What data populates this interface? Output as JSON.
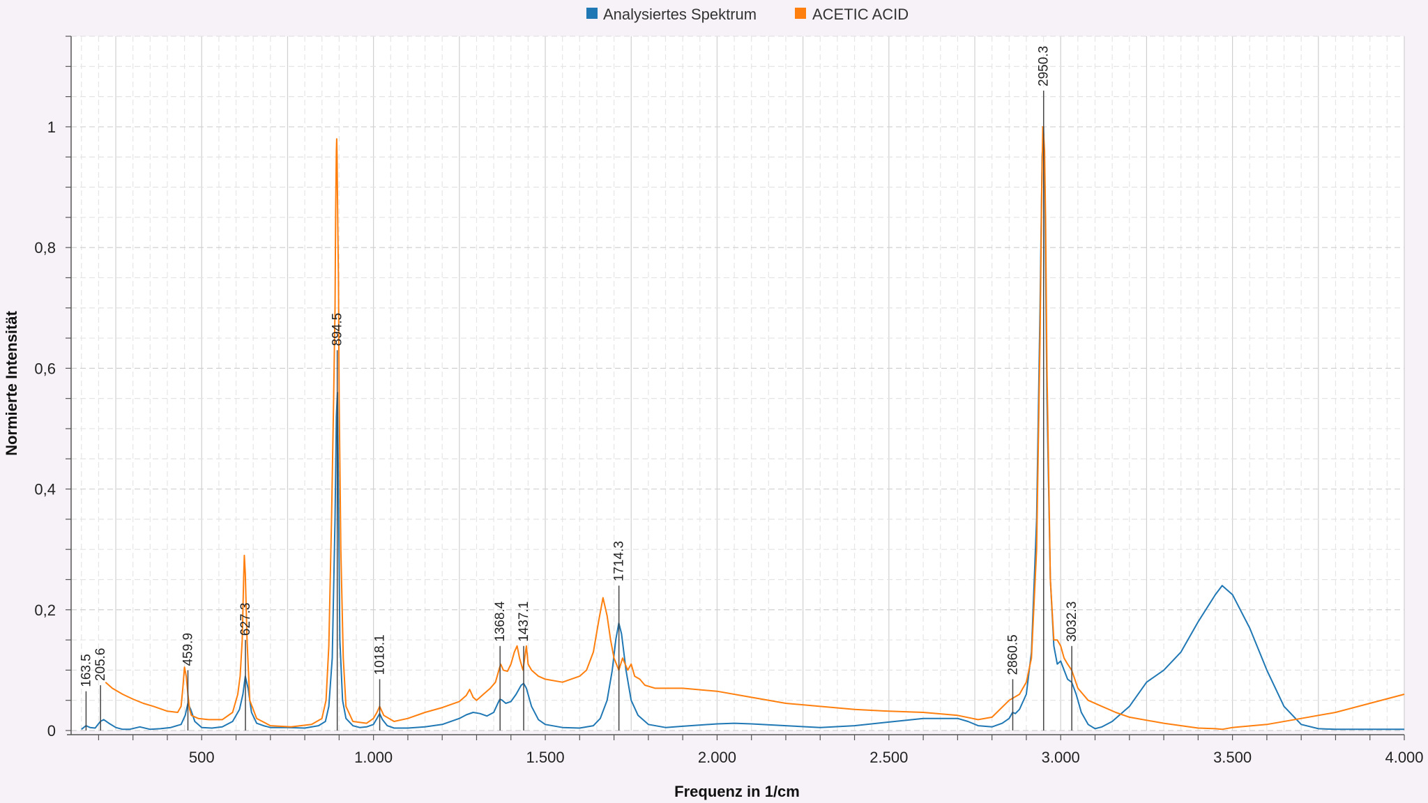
{
  "chart_data": {
    "type": "line",
    "title": "",
    "xlabel": "Frequenz in 1/cm",
    "ylabel": "Normierte Intensität",
    "xlim": [
      120,
      4000
    ],
    "ylim": [
      0,
      1.15
    ],
    "grid": true,
    "legend_position": "top-center",
    "x_ticks": [
      {
        "value": 500,
        "label": "500"
      },
      {
        "value": 1000,
        "label": "1.000"
      },
      {
        "value": 1500,
        "label": "1.500"
      },
      {
        "value": 2000,
        "label": "2.000"
      },
      {
        "value": 2500,
        "label": "2.500"
      },
      {
        "value": 3000,
        "label": "3.000"
      },
      {
        "value": 3500,
        "label": "3.500"
      },
      {
        "value": 4000,
        "label": "4.000"
      }
    ],
    "y_ticks": [
      {
        "value": 0,
        "label": "0"
      },
      {
        "value": 0.2,
        "label": "0,2"
      },
      {
        "value": 0.4,
        "label": "0,4"
      },
      {
        "value": 0.6,
        "label": "0,6"
      },
      {
        "value": 0.8,
        "label": "0,8"
      },
      {
        "value": 1,
        "label": "1"
      }
    ],
    "series": [
      {
        "name": "Analysiertes Spektrum",
        "color": "#1f77b4",
        "x": [
          150,
          163,
          175,
          190,
          205,
          215,
          230,
          250,
          270,
          290,
          320,
          350,
          380,
          410,
          440,
          452,
          460,
          468,
          480,
          500,
          530,
          560,
          590,
          610,
          620,
          627,
          635,
          645,
          660,
          680,
          700,
          750,
          800,
          840,
          860,
          870,
          880,
          888,
          892,
          895,
          898,
          902,
          910,
          920,
          940,
          960,
          980,
          1000,
          1010,
          1018,
          1026,
          1040,
          1060,
          1100,
          1150,
          1200,
          1250,
          1270,
          1290,
          1310,
          1330,
          1350,
          1362,
          1368,
          1375,
          1385,
          1400,
          1415,
          1430,
          1437,
          1445,
          1460,
          1480,
          1500,
          1550,
          1600,
          1640,
          1660,
          1680,
          1695,
          1705,
          1714,
          1722,
          1735,
          1750,
          1770,
          1800,
          1850,
          1900,
          2000,
          2050,
          2100,
          2200,
          2300,
          2400,
          2500,
          2600,
          2650,
          2700,
          2730,
          2760,
          2800,
          2830,
          2850,
          2860,
          2868,
          2880,
          2900,
          2915,
          2930,
          2940,
          2946,
          2950,
          2954,
          2960,
          2970,
          2980,
          2990,
          3000,
          3010,
          3020,
          3032,
          3045,
          3060,
          3080,
          3100,
          3120,
          3150,
          3200,
          3250,
          3300,
          3350,
          3400,
          3450,
          3470,
          3500,
          3550,
          3600,
          3650,
          3700,
          3750,
          3800,
          3900,
          4000
        ],
        "y": [
          0.002,
          0.008,
          0.005,
          0.004,
          0.015,
          0.018,
          0.012,
          0.005,
          0.002,
          0.002,
          0.006,
          0.002,
          0.003,
          0.005,
          0.01,
          0.025,
          0.045,
          0.035,
          0.015,
          0.005,
          0.004,
          0.006,
          0.015,
          0.035,
          0.06,
          0.09,
          0.07,
          0.03,
          0.012,
          0.008,
          0.005,
          0.005,
          0.004,
          0.008,
          0.015,
          0.04,
          0.12,
          0.35,
          0.52,
          0.56,
          0.4,
          0.15,
          0.05,
          0.02,
          0.008,
          0.005,
          0.006,
          0.01,
          0.02,
          0.028,
          0.018,
          0.008,
          0.004,
          0.004,
          0.006,
          0.01,
          0.02,
          0.026,
          0.03,
          0.028,
          0.024,
          0.03,
          0.045,
          0.052,
          0.05,
          0.045,
          0.048,
          0.06,
          0.075,
          0.078,
          0.07,
          0.04,
          0.018,
          0.01,
          0.005,
          0.004,
          0.008,
          0.02,
          0.05,
          0.1,
          0.15,
          0.178,
          0.16,
          0.1,
          0.05,
          0.025,
          0.01,
          0.005,
          0.007,
          0.011,
          0.012,
          0.011,
          0.008,
          0.005,
          0.008,
          0.014,
          0.02,
          0.02,
          0.02,
          0.015,
          0.008,
          0.006,
          0.012,
          0.02,
          0.03,
          0.028,
          0.035,
          0.06,
          0.13,
          0.35,
          0.7,
          0.95,
          1.0,
          0.9,
          0.55,
          0.25,
          0.14,
          0.11,
          0.115,
          0.1,
          0.085,
          0.08,
          0.06,
          0.03,
          0.01,
          0.003,
          0.006,
          0.015,
          0.04,
          0.08,
          0.1,
          0.13,
          0.18,
          0.225,
          0.24,
          0.225,
          0.17,
          0.1,
          0.04,
          0.01,
          0.003,
          0.002,
          0.002,
          0.002
        ]
      },
      {
        "name": "ACETIC ACID",
        "color": "#ff7f0e",
        "x": [
          220,
          240,
          270,
          300,
          330,
          360,
          400,
          430,
          440,
          445,
          450,
          455,
          460,
          465,
          470,
          490,
          520,
          560,
          590,
          605,
          612,
          618,
          620,
          622,
          624,
          627,
          632,
          640,
          660,
          700,
          760,
          820,
          850,
          862,
          870,
          878,
          884,
          888,
          890,
          892,
          893,
          894,
          895,
          896,
          898,
          900,
          905,
          912,
          920,
          940,
          980,
          1000,
          1010,
          1018,
          1030,
          1060,
          1100,
          1150,
          1200,
          1250,
          1270,
          1280,
          1290,
          1300,
          1320,
          1340,
          1355,
          1365,
          1370,
          1378,
          1390,
          1400,
          1410,
          1418,
          1425,
          1435,
          1440,
          1445,
          1450,
          1460,
          1480,
          1500,
          1550,
          1600,
          1620,
          1640,
          1655,
          1668,
          1680,
          1690,
          1700,
          1714,
          1725,
          1740,
          1750,
          1760,
          1775,
          1790,
          1820,
          1900,
          2000,
          2100,
          2200,
          2300,
          2400,
          2500,
          2600,
          2700,
          2760,
          2800,
          2850,
          2880,
          2900,
          2915,
          2930,
          2940,
          2945,
          2948,
          2950,
          2953,
          2956,
          2960,
          2970,
          2980,
          2990,
          3000,
          3010,
          3020,
          3032,
          3050,
          3080,
          3120,
          3160,
          3200,
          3300,
          3400,
          3450,
          3470,
          3500,
          3600,
          3700,
          3800,
          3900,
          4000
        ],
        "y": [
          0.08,
          0.07,
          0.06,
          0.052,
          0.045,
          0.04,
          0.032,
          0.03,
          0.04,
          0.07,
          0.105,
          0.09,
          0.06,
          0.035,
          0.025,
          0.02,
          0.018,
          0.018,
          0.03,
          0.06,
          0.09,
          0.15,
          0.2,
          0.25,
          0.29,
          0.26,
          0.15,
          0.05,
          0.02,
          0.008,
          0.006,
          0.01,
          0.02,
          0.05,
          0.14,
          0.35,
          0.55,
          0.7,
          0.86,
          0.96,
          0.98,
          0.95,
          0.9,
          0.84,
          0.75,
          0.55,
          0.3,
          0.12,
          0.04,
          0.015,
          0.012,
          0.02,
          0.03,
          0.04,
          0.025,
          0.015,
          0.02,
          0.03,
          0.038,
          0.048,
          0.058,
          0.068,
          0.055,
          0.05,
          0.06,
          0.07,
          0.08,
          0.1,
          0.11,
          0.1,
          0.098,
          0.11,
          0.13,
          0.14,
          0.12,
          0.1,
          0.12,
          0.14,
          0.11,
          0.1,
          0.09,
          0.085,
          0.08,
          0.09,
          0.1,
          0.13,
          0.18,
          0.22,
          0.19,
          0.15,
          0.12,
          0.1,
          0.12,
          0.1,
          0.11,
          0.09,
          0.085,
          0.075,
          0.07,
          0.07,
          0.065,
          0.055,
          0.045,
          0.04,
          0.035,
          0.032,
          0.03,
          0.025,
          0.018,
          0.022,
          0.05,
          0.06,
          0.08,
          0.12,
          0.3,
          0.65,
          0.9,
          1.0,
          0.99,
          0.96,
          0.85,
          0.6,
          0.25,
          0.15,
          0.15,
          0.14,
          0.12,
          0.11,
          0.1,
          0.07,
          0.05,
          0.04,
          0.03,
          0.022,
          0.012,
          0.004,
          0.003,
          0.002,
          0.005,
          0.01,
          0.02,
          0.03,
          0.045,
          0.06
        ]
      }
    ],
    "peaks": [
      {
        "x": 163.5,
        "y": 0.065,
        "label": "163.5"
      },
      {
        "x": 205.6,
        "y": 0.075,
        "label": "205.6"
      },
      {
        "x": 459.9,
        "y": 0.1,
        "label": "459.9"
      },
      {
        "x": 627.3,
        "y": 0.15,
        "label": "627.3"
      },
      {
        "x": 894.5,
        "y": 0.63,
        "label": "894.5"
      },
      {
        "x": 1018.1,
        "y": 0.085,
        "label": "1018.1"
      },
      {
        "x": 1368.4,
        "y": 0.14,
        "label": "1368.4"
      },
      {
        "x": 1437.1,
        "y": 0.14,
        "label": "1437.1"
      },
      {
        "x": 1714.3,
        "y": 0.24,
        "label": "1714.3"
      },
      {
        "x": 2860.5,
        "y": 0.085,
        "label": "2860.5"
      },
      {
        "x": 2950.3,
        "y": 1.06,
        "label": "2950.3"
      },
      {
        "x": 3032.3,
        "y": 0.14,
        "label": "3032.3"
      }
    ]
  }
}
